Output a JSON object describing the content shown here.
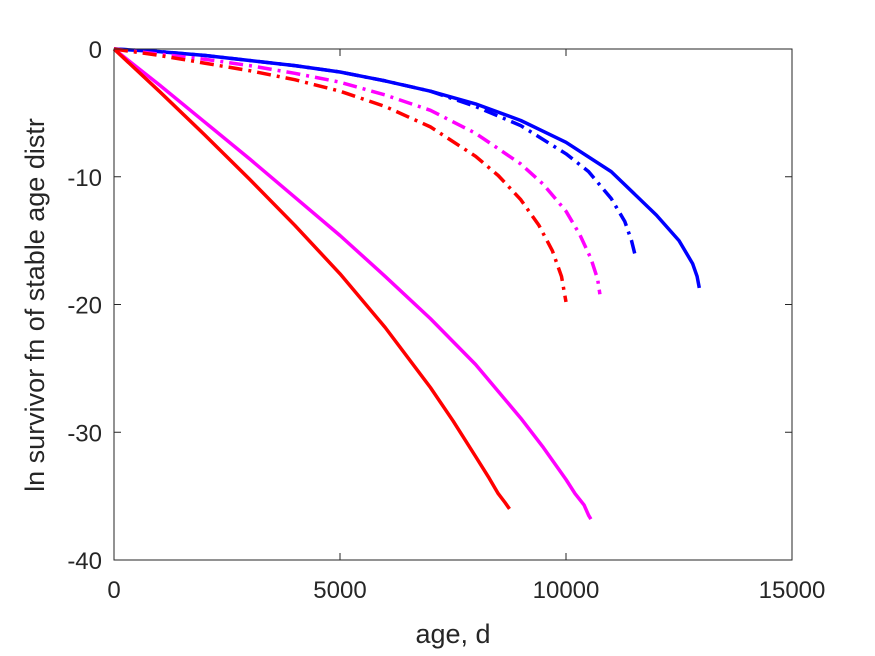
{
  "chart_data": {
    "type": "line",
    "title": "",
    "xlabel": "age, d",
    "ylabel": "ln survivor fn of stable age distr",
    "xlim": [
      0,
      15000
    ],
    "ylim": [
      -40,
      0
    ],
    "xticks": [
      0,
      5000,
      10000,
      15000
    ],
    "yticks": [
      0,
      -10,
      -20,
      -30,
      -40
    ],
    "xtick_labels": [
      "0",
      "5000",
      "10000",
      "15000"
    ],
    "ytick_labels": [
      "0",
      "-10",
      "-20",
      "-30",
      "-40"
    ],
    "grid": false,
    "legend": "none",
    "series": [
      {
        "color": "#0000ff",
        "style": "solid",
        "x": [
          0,
          1000,
          2000,
          3000,
          4000,
          5000,
          6000,
          7000,
          8000,
          9000,
          10000,
          11000,
          12000,
          12500,
          12800,
          12900,
          12950
        ],
        "y": [
          0,
          -0.2,
          -0.5,
          -0.9,
          -1.3,
          -1.8,
          -2.5,
          -3.3,
          -4.3,
          -5.6,
          -7.3,
          -9.6,
          -13.0,
          -15.0,
          -16.8,
          -17.8,
          -18.7
        ]
      },
      {
        "color": "#0000ff",
        "style": "dashdot",
        "x": [
          0,
          1000,
          2000,
          3000,
          4000,
          5000,
          6000,
          7000,
          8000,
          9000,
          10000,
          10500,
          11000,
          11300,
          11450,
          11520
        ],
        "y": [
          0,
          -0.2,
          -0.5,
          -0.9,
          -1.3,
          -1.8,
          -2.5,
          -3.3,
          -4.5,
          -6.0,
          -8.2,
          -9.6,
          -11.7,
          -13.5,
          -15.0,
          -16.0
        ]
      },
      {
        "color": "#ff00ff",
        "style": "solid",
        "x": [
          0,
          1000,
          2000,
          3000,
          4000,
          5000,
          6000,
          7000,
          8000,
          9000,
          9500,
          10000,
          10200,
          10400,
          10500,
          10550
        ],
        "y": [
          0,
          -2.8,
          -5.7,
          -8.6,
          -11.6,
          -14.6,
          -17.8,
          -21.1,
          -24.7,
          -28.9,
          -31.2,
          -33.7,
          -34.8,
          -35.7,
          -36.5,
          -36.8
        ]
      },
      {
        "color": "#ff00ff",
        "style": "dashdot",
        "x": [
          0,
          1000,
          2000,
          3000,
          4000,
          5000,
          6000,
          7000,
          8000,
          9000,
          9500,
          10000,
          10300,
          10550,
          10700,
          10750
        ],
        "y": [
          0,
          -0.4,
          -0.8,
          -1.3,
          -1.9,
          -2.6,
          -3.6,
          -4.8,
          -6.6,
          -9.0,
          -10.6,
          -12.7,
          -14.5,
          -16.4,
          -18.0,
          -19.2
        ]
      },
      {
        "color": "#ff0000",
        "style": "solid",
        "x": [
          0,
          1000,
          2000,
          3000,
          4000,
          5000,
          6000,
          7000,
          7500,
          8000,
          8300,
          8500,
          8650,
          8750
        ],
        "y": [
          0,
          -3.3,
          -6.7,
          -10.2,
          -13.8,
          -17.6,
          -21.8,
          -26.5,
          -29.1,
          -31.9,
          -33.6,
          -34.8,
          -35.5,
          -36.0
        ]
      },
      {
        "color": "#ff0000",
        "style": "dashdot",
        "x": [
          0,
          1000,
          2000,
          3000,
          4000,
          5000,
          6000,
          7000,
          8000,
          8500,
          9000,
          9400,
          9700,
          9900,
          10000
        ],
        "y": [
          0,
          -0.5,
          -1.1,
          -1.7,
          -2.4,
          -3.3,
          -4.5,
          -6.1,
          -8.4,
          -9.9,
          -11.8,
          -13.8,
          -15.8,
          -17.8,
          -19.8
        ]
      }
    ]
  }
}
